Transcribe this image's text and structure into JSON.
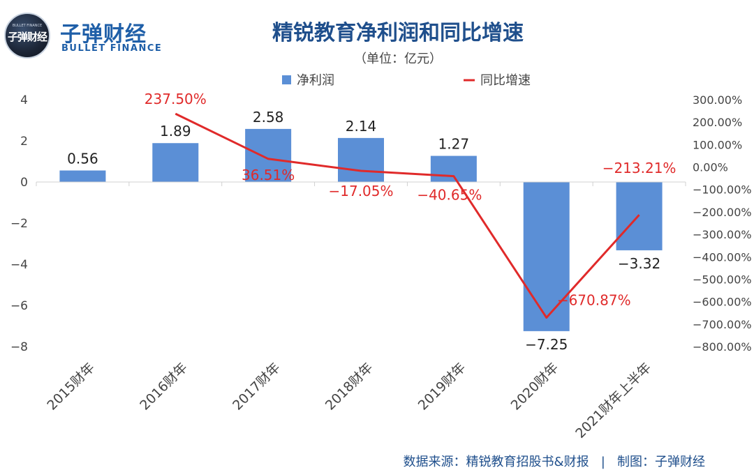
{
  "logo": {
    "name_cn": "子弹财经",
    "name_en": "BULLET FINANCE",
    "badge_text": "子弹财经",
    "badge_sub": "BULLET FINANCE"
  },
  "colors": {
    "bar": "#5b8fd6",
    "line": "#e02a2a",
    "title": "#1f4f8c",
    "footer": "#1f4f8c"
  },
  "chart_data": {
    "type": "bar",
    "title": "精锐教育净利润和同比增速",
    "subtitle": "（单位：亿元）",
    "categories": [
      "2015财年",
      "2016财年",
      "2017财年",
      "2018财年",
      "2019财年",
      "2020财年",
      "2021财年上半年"
    ],
    "series": [
      {
        "name": "净利润",
        "type": "bar",
        "axis": "left",
        "values": [
          0.56,
          1.89,
          2.58,
          2.14,
          1.27,
          -7.25,
          -3.32
        ],
        "labels": [
          "0.56",
          "1.89",
          "2.58",
          "2.14",
          "1.27",
          "−7.25",
          "−3.32"
        ]
      },
      {
        "name": "同比增速",
        "type": "line",
        "axis": "right",
        "values": [
          null,
          237.5,
          36.51,
          -17.05,
          -40.65,
          -670.87,
          -213.21
        ],
        "labels": [
          "",
          "237.50%",
          "36.51%",
          "−17.05%",
          "−40.65%",
          "−670.87%",
          "−213.21%"
        ]
      }
    ],
    "y_left": {
      "ylim": [
        -8,
        4
      ],
      "ticks": [
        4,
        2,
        0,
        -2,
        -4,
        -6,
        -8
      ],
      "tick_labels": [
        "4",
        "2",
        "0",
        "−2",
        "−4",
        "−6",
        "−8"
      ]
    },
    "y_right": {
      "ylim": [
        -800,
        300
      ],
      "ticks": [
        300,
        200,
        100,
        0,
        -100,
        -200,
        -300,
        -400,
        -500,
        -600,
        -700,
        -800
      ],
      "tick_labels": [
        "300.00%",
        "200.00%",
        "100.00%",
        "0.00%",
        "−100.00%",
        "−200.00%",
        "−300.00%",
        "−400.00%",
        "−500.00%",
        "−600.00%",
        "−700.00%",
        "−800.00%"
      ]
    },
    "legend_position": "top",
    "grid": false
  },
  "footer": {
    "source": "数据来源：精锐教育招股书&财报",
    "separator": "|",
    "credit": "制图：子弹财经"
  }
}
